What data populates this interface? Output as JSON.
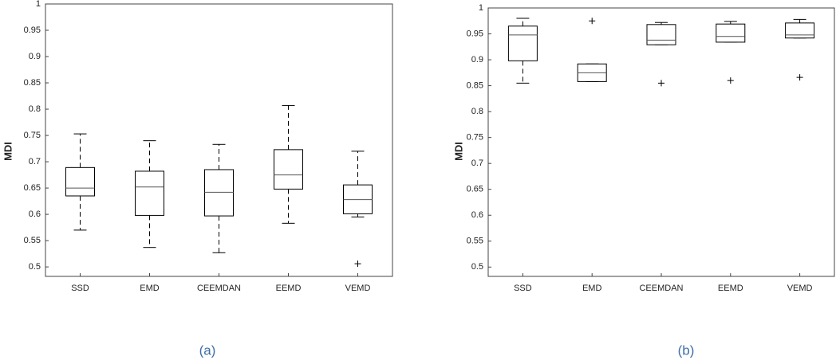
{
  "chart_data": [
    {
      "type": "box",
      "caption": "(a)",
      "ylabel": "MDI",
      "categories": [
        "SSD",
        "EMD",
        "CEEMDAN",
        "EEMD",
        "VEMD"
      ],
      "boxes": [
        {
          "whisker_low": 0.57,
          "q1": 0.635,
          "median": 0.65,
          "q3": 0.689,
          "whisker_high": 0.753,
          "outliers": []
        },
        {
          "whisker_low": 0.537,
          "q1": 0.598,
          "median": 0.652,
          "q3": 0.682,
          "whisker_high": 0.74,
          "outliers": []
        },
        {
          "whisker_low": 0.527,
          "q1": 0.597,
          "median": 0.642,
          "q3": 0.685,
          "whisker_high": 0.733,
          "outliers": []
        },
        {
          "whisker_low": 0.583,
          "q1": 0.648,
          "median": 0.675,
          "q3": 0.723,
          "whisker_high": 0.807,
          "outliers": []
        },
        {
          "whisker_low": 0.595,
          "q1": 0.601,
          "median": 0.628,
          "q3": 0.656,
          "whisker_high": 0.72,
          "outliers": [
            0.506
          ]
        }
      ],
      "color": "#000000",
      "ylim": [
        0.482,
        1
      ],
      "yticks": [
        0.5,
        0.55,
        0.6,
        0.65,
        0.7,
        0.75,
        0.8,
        0.85,
        0.9,
        0.95,
        1
      ]
    },
    {
      "type": "box",
      "caption": "(b)",
      "ylabel": "MDI",
      "categories": [
        "SSD",
        "EMD",
        "CEEMDAN",
        "EEMD",
        "VEMD"
      ],
      "boxes": [
        {
          "whisker_low": 0.855,
          "q1": 0.898,
          "median": 0.948,
          "q3": 0.965,
          "whisker_high": 0.98,
          "outliers": []
        },
        {
          "whisker_low": 0.858,
          "q1": 0.858,
          "median": 0.875,
          "q3": 0.892,
          "whisker_high": 0.892,
          "outliers": [
            0.975
          ]
        },
        {
          "whisker_low": 0.929,
          "q1": 0.929,
          "median": 0.938,
          "q3": 0.968,
          "whisker_high": 0.972,
          "outliers": [
            0.855
          ]
        },
        {
          "whisker_low": 0.934,
          "q1": 0.934,
          "median": 0.945,
          "q3": 0.969,
          "whisker_high": 0.974,
          "outliers": [
            0.86
          ]
        },
        {
          "whisker_low": 0.942,
          "q1": 0.942,
          "median": 0.948,
          "q3": 0.971,
          "whisker_high": 0.978,
          "outliers": [
            0.866
          ]
        }
      ],
      "color": "#000000",
      "ylim": [
        0.482,
        1
      ],
      "yticks": [
        0.5,
        0.55,
        0.6,
        0.65,
        0.7,
        0.75,
        0.8,
        0.85,
        0.9,
        0.95,
        1
      ]
    }
  ]
}
